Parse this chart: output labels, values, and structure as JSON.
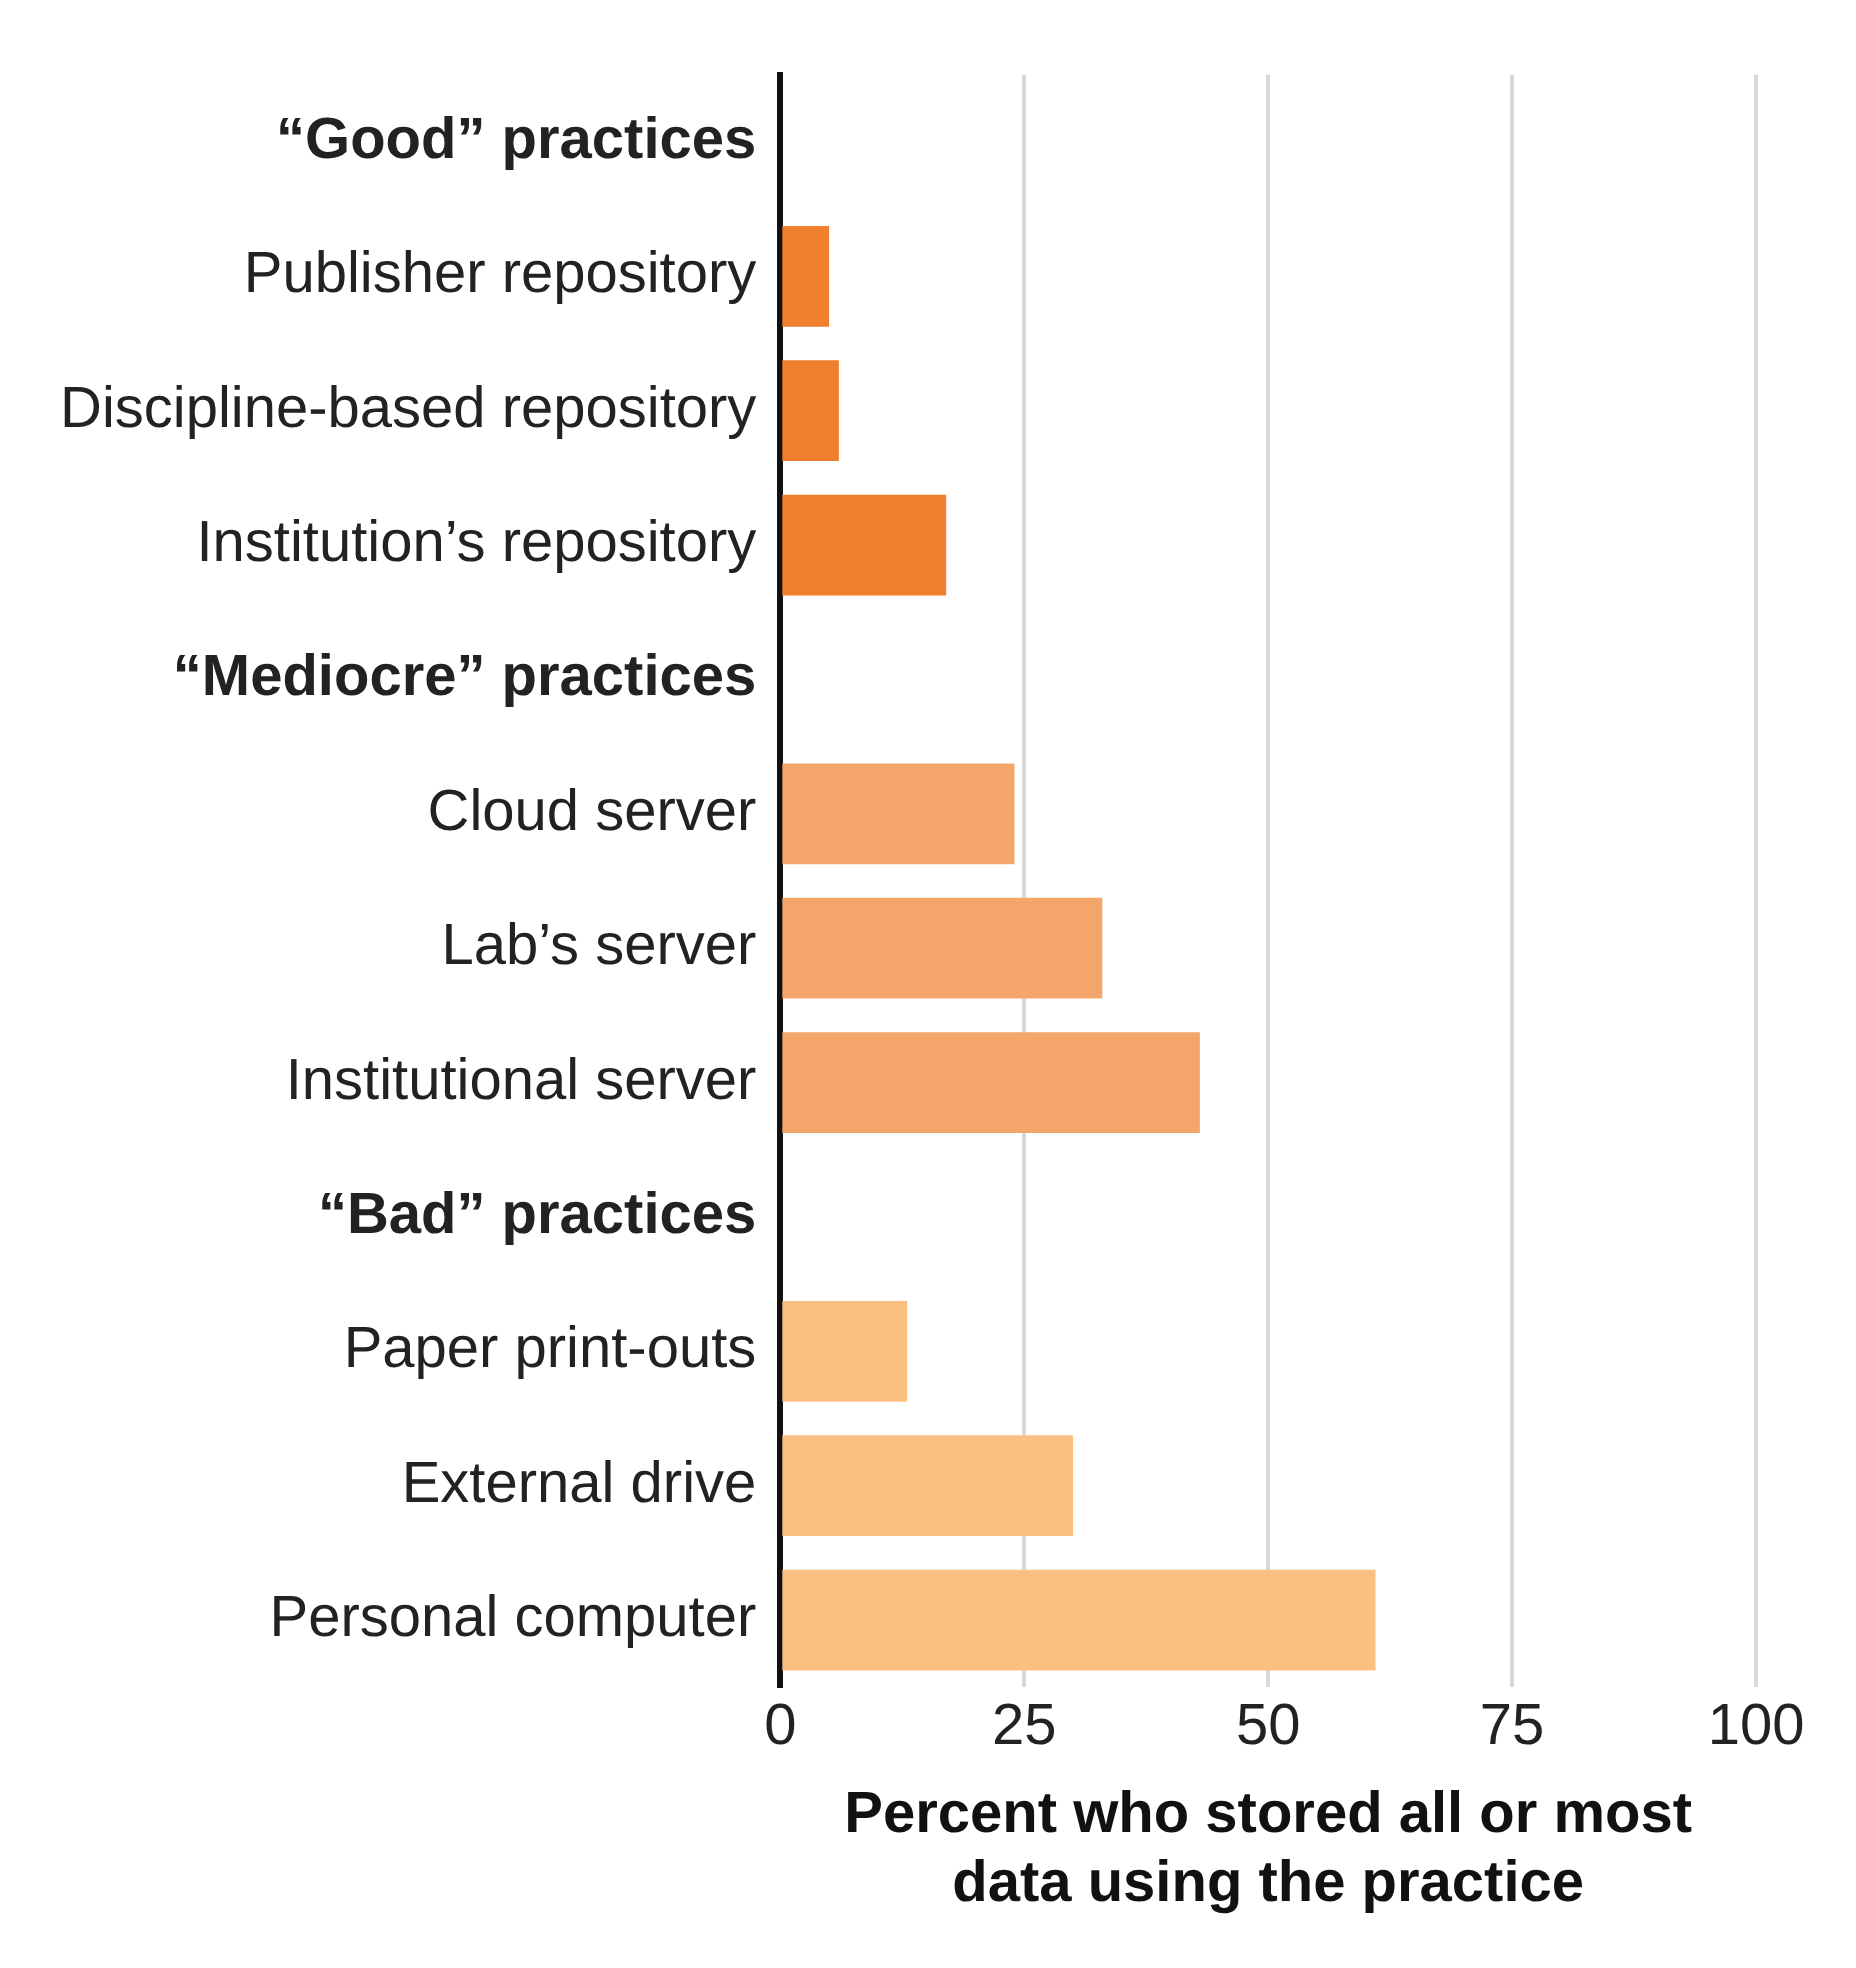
{
  "chart_data": {
    "type": "bar",
    "orientation": "horizontal",
    "xlabel": "Percent who stored all or most data using the practice",
    "categories": [
      "“Good” practices",
      "Publisher repository",
      "Discipline-based repository",
      "Institution’s repository",
      "“Mediocre” practices",
      "Cloud server",
      "Lab’s server",
      "Institutional server",
      "“Bad” practices",
      "Paper print-outs",
      "External drive",
      "Personal computer"
    ],
    "values": [
      null,
      5,
      6,
      17,
      null,
      24,
      33,
      43,
      null,
      13,
      30,
      61
    ],
    "colors": [
      "#f07f2e",
      "#f07f2e",
      "#f07f2e",
      "#f07f2e",
      "#f4a56a",
      "#f4a56a",
      "#f4a56a",
      "#f4a56a",
      "#fbbf82",
      "#fbbf82",
      "#fbbf82",
      "#fbbf82"
    ],
    "xlim": [
      0,
      100
    ],
    "xticks": [
      0,
      25,
      50,
      75,
      100
    ],
    "grid": "x",
    "legend": false
  }
}
